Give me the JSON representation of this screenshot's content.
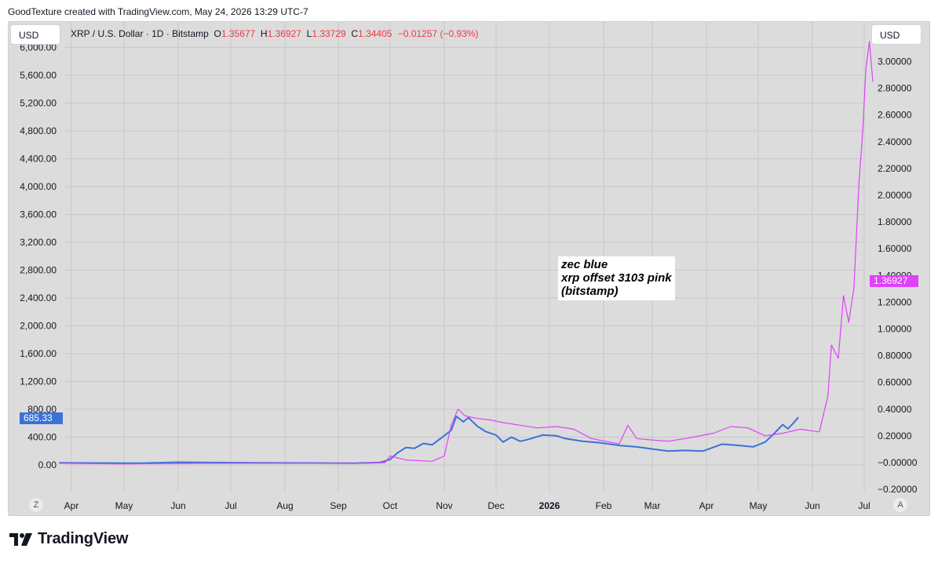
{
  "credit": "GoodTexture created with TradingView.com, May 24, 2026 13:29 UTC-7",
  "left_currency": "USD",
  "right_currency": "USD",
  "legend": {
    "symbol": "XRP / U.S. Dollar · 1D · Bitstamp",
    "o_label": "O",
    "o_value": "1.35677",
    "h_label": "H",
    "h_value": "1.36927",
    "l_label": "L",
    "l_value": "1.33729",
    "c_label": "C",
    "c_value": "1.34405",
    "change": "−0.01257 (−0.93%)"
  },
  "annotation": [
    "zec blue",
    "xrp offset 3103 pink",
    "(bitstamp)"
  ],
  "zoom_button": "Z",
  "auto_button": "A",
  "branding": "TradingView",
  "colors": {
    "blue": "#3b72d8",
    "pink": "#e040fb",
    "background": "#dcdcdc",
    "grid": "#c8c8c8"
  },
  "chart_data": {
    "type": "line",
    "x_ticks": [
      "Apr",
      "May",
      "Jun",
      "Jul",
      "Aug",
      "Sep",
      "Oct",
      "Nov",
      "Dec",
      "2026",
      "Feb",
      "Mar",
      "Apr",
      "May",
      "Jun",
      "Jul"
    ],
    "left_axis": {
      "ticks": [
        "6,000.00",
        "5,600.00",
        "5,200.00",
        "4,800.00",
        "4,400.00",
        "4,000.00",
        "3,600.00",
        "3,200.00",
        "2,800.00",
        "2,400.00",
        "2,000.00",
        "1,600.00",
        "1,200.00",
        "800.00",
        "400.00",
        "0.00"
      ],
      "range": [
        0,
        6000
      ]
    },
    "right_axis": {
      "ticks": [
        "3.00000",
        "2.80000",
        "2.60000",
        "2.40000",
        "2.20000",
        "2.00000",
        "1.80000",
        "1.60000",
        "1.40000",
        "1.20000",
        "1.00000",
        "0.80000",
        "0.60000",
        "0.40000",
        "0.20000",
        "−0.00000",
        "−0.20000"
      ],
      "range": [
        -0.2,
        3.0
      ]
    },
    "grid": true,
    "series": [
      {
        "name": "zec blue",
        "axis": "left",
        "color": "#3b72d8",
        "last_value_label": "685.33",
        "points": [
          [
            "2025-03-25",
            32
          ],
          [
            "2025-04-15",
            28
          ],
          [
            "2025-05-10",
            25
          ],
          [
            "2025-06-01",
            40
          ],
          [
            "2025-06-20",
            35
          ],
          [
            "2025-07-15",
            30
          ],
          [
            "2025-08-15",
            28
          ],
          [
            "2025-09-10",
            26
          ],
          [
            "2025-09-25",
            35
          ],
          [
            "2025-10-01",
            80
          ],
          [
            "2025-10-05",
            170
          ],
          [
            "2025-10-10",
            250
          ],
          [
            "2025-10-15",
            240
          ],
          [
            "2025-10-20",
            310
          ],
          [
            "2025-10-25",
            290
          ],
          [
            "2025-11-01",
            420
          ],
          [
            "2025-11-05",
            500
          ],
          [
            "2025-11-08",
            700
          ],
          [
            "2025-11-12",
            620
          ],
          [
            "2025-11-15",
            680
          ],
          [
            "2025-11-20",
            560
          ],
          [
            "2025-11-25",
            480
          ],
          [
            "2025-12-01",
            430
          ],
          [
            "2025-12-05",
            330
          ],
          [
            "2025-12-10",
            400
          ],
          [
            "2025-12-15",
            340
          ],
          [
            "2025-12-20",
            370
          ],
          [
            "2025-12-28",
            430
          ],
          [
            "2026-01-05",
            420
          ],
          [
            "2026-01-10",
            380
          ],
          [
            "2026-01-20",
            340
          ],
          [
            "2026-01-30",
            320
          ],
          [
            "2026-02-10",
            280
          ],
          [
            "2026-02-20",
            260
          ],
          [
            "2026-03-01",
            230
          ],
          [
            "2026-03-10",
            200
          ],
          [
            "2026-03-20",
            210
          ],
          [
            "2026-03-30",
            200
          ],
          [
            "2026-04-10",
            300
          ],
          [
            "2026-04-20",
            280
          ],
          [
            "2026-04-28",
            260
          ],
          [
            "2026-05-05",
            330
          ],
          [
            "2026-05-10",
            450
          ],
          [
            "2026-05-15",
            580
          ],
          [
            "2026-05-18",
            520
          ],
          [
            "2026-05-21",
            600
          ],
          [
            "2026-05-24",
            685
          ]
        ]
      },
      {
        "name": "xrp offset 3103 pink",
        "axis": "right",
        "color": "#e040fb",
        "last_value_label": "1.36927",
        "points": [
          [
            "2025-03-25",
            -0.005
          ],
          [
            "2025-05-01",
            -0.01
          ],
          [
            "2025-06-15",
            -0.005
          ],
          [
            "2025-08-01",
            -0.005
          ],
          [
            "2025-09-15",
            -0.005
          ],
          [
            "2025-09-28",
            0.0
          ],
          [
            "2025-10-01",
            0.05
          ],
          [
            "2025-10-10",
            0.02
          ],
          [
            "2025-10-25",
            0.01
          ],
          [
            "2025-11-01",
            0.05
          ],
          [
            "2025-11-05",
            0.28
          ],
          [
            "2025-11-09",
            0.4
          ],
          [
            "2025-11-13",
            0.35
          ],
          [
            "2025-11-20",
            0.33
          ],
          [
            "2025-11-27",
            0.32
          ],
          [
            "2025-12-05",
            0.3
          ],
          [
            "2025-12-15",
            0.28
          ],
          [
            "2025-12-25",
            0.26
          ],
          [
            "2026-01-05",
            0.27
          ],
          [
            "2026-01-15",
            0.25
          ],
          [
            "2026-01-25",
            0.18
          ],
          [
            "2026-02-10",
            0.14
          ],
          [
            "2026-02-15",
            0.28
          ],
          [
            "2026-02-20",
            0.18
          ],
          [
            "2026-02-28",
            0.17
          ],
          [
            "2026-03-10",
            0.16
          ],
          [
            "2026-03-20",
            0.18
          ],
          [
            "2026-04-05",
            0.22
          ],
          [
            "2026-04-15",
            0.27
          ],
          [
            "2026-04-25",
            0.26
          ],
          [
            "2026-05-05",
            0.2
          ],
          [
            "2026-05-15",
            0.22
          ],
          [
            "2026-05-25",
            0.25
          ],
          [
            "2026-06-05",
            0.23
          ],
          [
            "2026-06-10",
            0.5
          ],
          [
            "2026-06-12",
            0.88
          ],
          [
            "2026-06-16",
            0.78
          ],
          [
            "2026-06-19",
            1.25
          ],
          [
            "2026-06-22",
            1.05
          ],
          [
            "2026-06-25",
            1.3
          ],
          [
            "2026-06-28",
            2.1
          ],
          [
            "2026-06-30",
            2.45
          ],
          [
            "2026-07-02",
            2.95
          ],
          [
            "2026-07-04",
            3.15
          ],
          [
            "2026-07-06",
            2.85
          ]
        ]
      }
    ]
  }
}
